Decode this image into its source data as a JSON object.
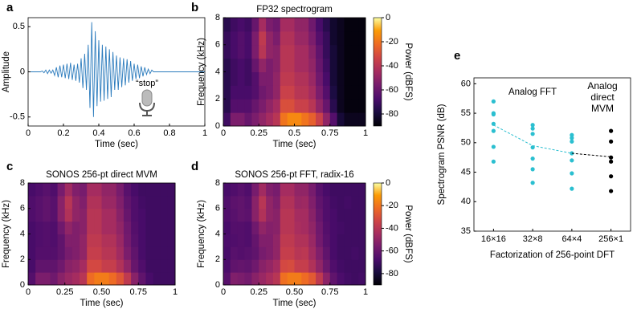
{
  "chart_data": [
    {
      "type": "line",
      "panel": "a",
      "xlabel": "Time (sec)",
      "ylabel": "Amplitude",
      "annotation": "“stop”",
      "color": "#2b7bbd",
      "xlim": [
        0,
        1
      ],
      "ylim": [
        -0.6,
        0.6
      ],
      "xticks": [
        0,
        0.2,
        0.4,
        0.6,
        0.8,
        1
      ],
      "yticks": [
        -0.5,
        0,
        0.5
      ],
      "x": [
        0,
        0.01,
        0.02,
        0.03,
        0.04,
        0.05,
        0.06,
        0.07,
        0.08,
        0.09,
        0.1,
        0.11,
        0.12,
        0.13,
        0.14,
        0.15,
        0.16,
        0.17,
        0.18,
        0.19,
        0.2,
        0.21,
        0.22,
        0.23,
        0.24,
        0.25,
        0.26,
        0.27,
        0.28,
        0.29,
        0.3,
        0.31,
        0.32,
        0.33,
        0.34,
        0.35,
        0.36,
        0.37,
        0.38,
        0.39,
        0.4,
        0.41,
        0.42,
        0.43,
        0.44,
        0.45,
        0.46,
        0.47,
        0.48,
        0.49,
        0.5,
        0.51,
        0.52,
        0.53,
        0.54,
        0.55,
        0.56,
        0.57,
        0.58,
        0.59,
        0.6,
        0.61,
        0.62,
        0.63,
        0.64,
        0.65,
        0.66,
        0.67,
        0.68,
        0.69,
        0.7,
        0.71,
        0.72,
        0.73,
        0.74,
        0.75,
        0.76,
        0.77,
        0.78,
        0.79,
        0.8,
        0.81,
        0.82,
        0.83,
        0.84,
        0.85,
        0.86,
        0.87,
        0.88,
        0.89,
        0.9,
        0.91,
        0.92,
        0.93,
        0.94,
        0.95,
        0.96,
        0.97,
        0.98,
        0.99,
        1
      ],
      "values": [
        0,
        0,
        0,
        0,
        0,
        0,
        0,
        0,
        0.01,
        -0.01,
        0.02,
        -0.02,
        0.02,
        -0.015,
        0.02,
        -0.04,
        0.05,
        -0.06,
        0.07,
        -0.06,
        0.08,
        -0.07,
        0.09,
        -0.08,
        0.1,
        -0.09,
        0.08,
        -0.1,
        0.09,
        -0.12,
        0.15,
        -0.18,
        0.2,
        -0.2,
        0.3,
        -0.4,
        0.55,
        -0.5,
        0.45,
        -0.38,
        0.35,
        -0.33,
        0.3,
        -0.32,
        0.28,
        -0.3,
        0.25,
        -0.28,
        0.22,
        -0.2,
        0.18,
        -0.2,
        0.16,
        -0.17,
        0.15,
        -0.15,
        0.14,
        -0.12,
        0.12,
        -0.1,
        0.09,
        -0.08,
        0.08,
        -0.07,
        0.06,
        -0.05,
        0.05,
        -0.03,
        0.03,
        -0.02,
        0.02,
        0,
        0,
        0,
        0,
        0,
        0,
        0,
        0,
        0,
        0,
        0,
        0,
        0,
        0,
        0,
        0,
        0,
        0,
        0,
        0,
        0,
        0,
        0,
        0,
        0,
        0,
        0,
        0,
        0,
        0
      ]
    },
    {
      "type": "heatmap",
      "panel": "b",
      "title": "FP32 spectrogram",
      "xlabel": "Time (sec)",
      "ylabel": "Frequency (kHz)",
      "xlim": [
        0,
        1
      ],
      "ylim": [
        0,
        8
      ],
      "xticks": [
        0,
        0.25,
        0.5,
        0.75,
        1
      ],
      "yticks": [
        0,
        2,
        4,
        6,
        8
      ],
      "colormap": "inferno",
      "zlim": [
        -90,
        0
      ],
      "colorbar_ticks": [
        0,
        -20,
        -40,
        -60,
        -80
      ],
      "colorbar_label": "Power (dBFS)",
      "z": [
        [
          -70,
          -55,
          -55,
          -60,
          -55,
          -50,
          -45,
          -40,
          -20,
          -15,
          -15,
          -20,
          -25,
          -35,
          -50,
          -65,
          -80,
          -85,
          -85,
          -85
        ],
        [
          -75,
          -65,
          -65,
          -65,
          -60,
          -55,
          -50,
          -45,
          -30,
          -30,
          -35,
          -35,
          -40,
          -50,
          -60,
          -75,
          -85,
          -88,
          -88,
          -88
        ],
        [
          -75,
          -68,
          -68,
          -68,
          -65,
          -58,
          -55,
          -50,
          -35,
          -35,
          -40,
          -40,
          -45,
          -55,
          -65,
          -78,
          -85,
          -88,
          -88,
          -88
        ],
        [
          -75,
          -70,
          -68,
          -70,
          -65,
          -55,
          -55,
          -50,
          -38,
          -38,
          -42,
          -42,
          -48,
          -58,
          -68,
          -80,
          -85,
          -88,
          -88,
          -88
        ],
        [
          -75,
          -70,
          -68,
          -70,
          -60,
          -50,
          -55,
          -52,
          -40,
          -40,
          -45,
          -45,
          -50,
          -60,
          -70,
          -80,
          -85,
          -88,
          -88,
          -88
        ],
        [
          -72,
          -68,
          -65,
          -68,
          -55,
          -40,
          -50,
          -52,
          -40,
          -40,
          -45,
          -45,
          -52,
          -62,
          -72,
          -80,
          -85,
          -88,
          -88,
          -88
        ],
        [
          -72,
          -68,
          -65,
          -68,
          -55,
          -38,
          -50,
          -55,
          -42,
          -42,
          -48,
          -48,
          -55,
          -65,
          -72,
          -82,
          -85,
          -88,
          -88,
          -88
        ],
        [
          -75,
          -70,
          -68,
          -70,
          -60,
          -45,
          -55,
          -58,
          -45,
          -45,
          -50,
          -50,
          -58,
          -68,
          -75,
          -82,
          -85,
          -88,
          -88,
          -88
        ]
      ]
    },
    {
      "type": "heatmap",
      "panel": "c",
      "title": "SONOS 256-pt direct MVM",
      "xlabel": "Time (sec)",
      "ylabel": "Frequency (kHz)",
      "xlim": [
        0,
        1
      ],
      "ylim": [
        0,
        8
      ],
      "xticks": [
        0,
        0.25,
        {
          "value": 0.5,
          "label": "0.50"
        },
        0.75,
        1
      ],
      "yticks": [
        0,
        2,
        4,
        6,
        8
      ],
      "colormap": "inferno",
      "zlim": [
        -90,
        0
      ],
      "z": [
        [
          -65,
          -55,
          -55,
          -58,
          -52,
          -48,
          -45,
          -40,
          -22,
          -18,
          -18,
          -22,
          -28,
          -38,
          -52,
          -62,
          -68,
          -70,
          -70,
          -70
        ],
        [
          -68,
          -62,
          -62,
          -62,
          -58,
          -52,
          -50,
          -45,
          -32,
          -32,
          -36,
          -36,
          -42,
          -50,
          -60,
          -66,
          -70,
          -70,
          -70,
          -70
        ],
        [
          -68,
          -65,
          -65,
          -65,
          -62,
          -56,
          -54,
          -50,
          -36,
          -36,
          -40,
          -40,
          -46,
          -55,
          -62,
          -68,
          -70,
          -70,
          -70,
          -70
        ],
        [
          -68,
          -66,
          -65,
          -66,
          -62,
          -54,
          -54,
          -50,
          -38,
          -38,
          -42,
          -42,
          -48,
          -57,
          -64,
          -68,
          -70,
          -70,
          -70,
          -70
        ],
        [
          -68,
          -66,
          -65,
          -66,
          -58,
          -50,
          -54,
          -52,
          -40,
          -40,
          -45,
          -45,
          -50,
          -58,
          -65,
          -68,
          -70,
          -70,
          -70,
          -70
        ],
        [
          -66,
          -64,
          -62,
          -64,
          -52,
          -42,
          -50,
          -52,
          -40,
          -40,
          -45,
          -45,
          -52,
          -60,
          -66,
          -68,
          -70,
          -70,
          -70,
          -70
        ],
        [
          -66,
          -64,
          -62,
          -64,
          -52,
          -40,
          -50,
          -54,
          -42,
          -42,
          -48,
          -48,
          -54,
          -62,
          -66,
          -69,
          -70,
          -70,
          -70,
          -70
        ],
        [
          -68,
          -66,
          -64,
          -66,
          -56,
          -46,
          -54,
          -56,
          -45,
          -45,
          -50,
          -50,
          -56,
          -64,
          -68,
          -70,
          -70,
          -70,
          -70,
          -70
        ]
      ]
    },
    {
      "type": "heatmap",
      "panel": "d",
      "title": "SONOS 256-pt FFT, radix-16",
      "xlabel": "Time (sec)",
      "ylabel": "Frequency (kHz)",
      "xlim": [
        0,
        1
      ],
      "ylim": [
        0,
        8
      ],
      "xticks": [
        0,
        0.25,
        {
          "value": 0.5,
          "label": "0.50"
        },
        0.75,
        1
      ],
      "yticks": [
        0,
        2,
        4,
        6,
        8
      ],
      "colormap": "inferno",
      "zlim": [
        -90,
        0
      ],
      "colorbar_ticks": [
        0,
        -20,
        -40,
        -60,
        -80
      ],
      "colorbar_label": "Power (dBFS)",
      "z": [
        [
          -64,
          -54,
          -55,
          -57,
          -52,
          -48,
          -44,
          -40,
          -21,
          -18,
          -18,
          -22,
          -27,
          -38,
          -51,
          -62,
          -67,
          -69,
          -70,
          -69
        ],
        [
          -67,
          -62,
          -61,
          -62,
          -58,
          -52,
          -49,
          -45,
          -32,
          -31,
          -36,
          -36,
          -42,
          -50,
          -59,
          -66,
          -69,
          -70,
          -70,
          -70
        ],
        [
          -68,
          -64,
          -65,
          -64,
          -62,
          -56,
          -54,
          -50,
          -36,
          -36,
          -40,
          -39,
          -46,
          -54,
          -62,
          -68,
          -70,
          -70,
          -69,
          -70
        ],
        [
          -67,
          -66,
          -65,
          -66,
          -61,
          -54,
          -54,
          -50,
          -38,
          -38,
          -42,
          -42,
          -48,
          -57,
          -64,
          -68,
          -70,
          -70,
          -70,
          -70
        ],
        [
          -68,
          -65,
          -65,
          -66,
          -58,
          -50,
          -53,
          -52,
          -40,
          -40,
          -44,
          -45,
          -50,
          -58,
          -65,
          -68,
          -69,
          -70,
          -70,
          -70
        ],
        [
          -66,
          -64,
          -62,
          -63,
          -52,
          -42,
          -50,
          -52,
          -40,
          -40,
          -45,
          -45,
          -52,
          -60,
          -66,
          -68,
          -70,
          -70,
          -70,
          -70
        ],
        [
          -66,
          -63,
          -62,
          -64,
          -52,
          -40,
          -50,
          -54,
          -42,
          -42,
          -48,
          -47,
          -54,
          -62,
          -66,
          -69,
          -70,
          -69,
          -70,
          -70
        ],
        [
          -68,
          -66,
          -64,
          -66,
          -56,
          -46,
          -54,
          -56,
          -45,
          -45,
          -50,
          -50,
          -56,
          -64,
          -68,
          -70,
          -70,
          -70,
          -70,
          -70
        ]
      ]
    },
    {
      "type": "scatter",
      "panel": "e",
      "xlabel": "Factorization of 256-point DFT",
      "ylabel": "Spectrogram PSNR (dB)",
      "categories": [
        "16×16",
        "32×8",
        "64×4",
        "256×1"
      ],
      "ylim": [
        35,
        61
      ],
      "yticks": [
        35,
        40,
        45,
        50,
        55,
        60
      ],
      "series": [
        {
          "name": "Analog FFT",
          "color": "#2bbfd0",
          "values": [
            [
              57,
              55,
              54.8,
              53.2,
              52,
              49.3,
              46.8
            ],
            [
              53,
              52.4,
              51.5,
              49.2,
              47.3,
              45.5,
              43.2
            ],
            [
              51.3,
              50.8,
              50.2,
              48.2,
              47,
              44.8,
              42.2
            ],
            null
          ],
          "trend": [
            53,
            49.5,
            48.2,
            null
          ]
        },
        {
          "name": "Analog direct MVM",
          "color": "#000000",
          "values": [
            null,
            null,
            null,
            [
              52,
              50.2,
              47.5,
              46.8,
              44.3,
              41.8
            ]
          ],
          "trend": [
            null,
            null,
            48.2,
            47.6
          ]
        }
      ]
    }
  ]
}
